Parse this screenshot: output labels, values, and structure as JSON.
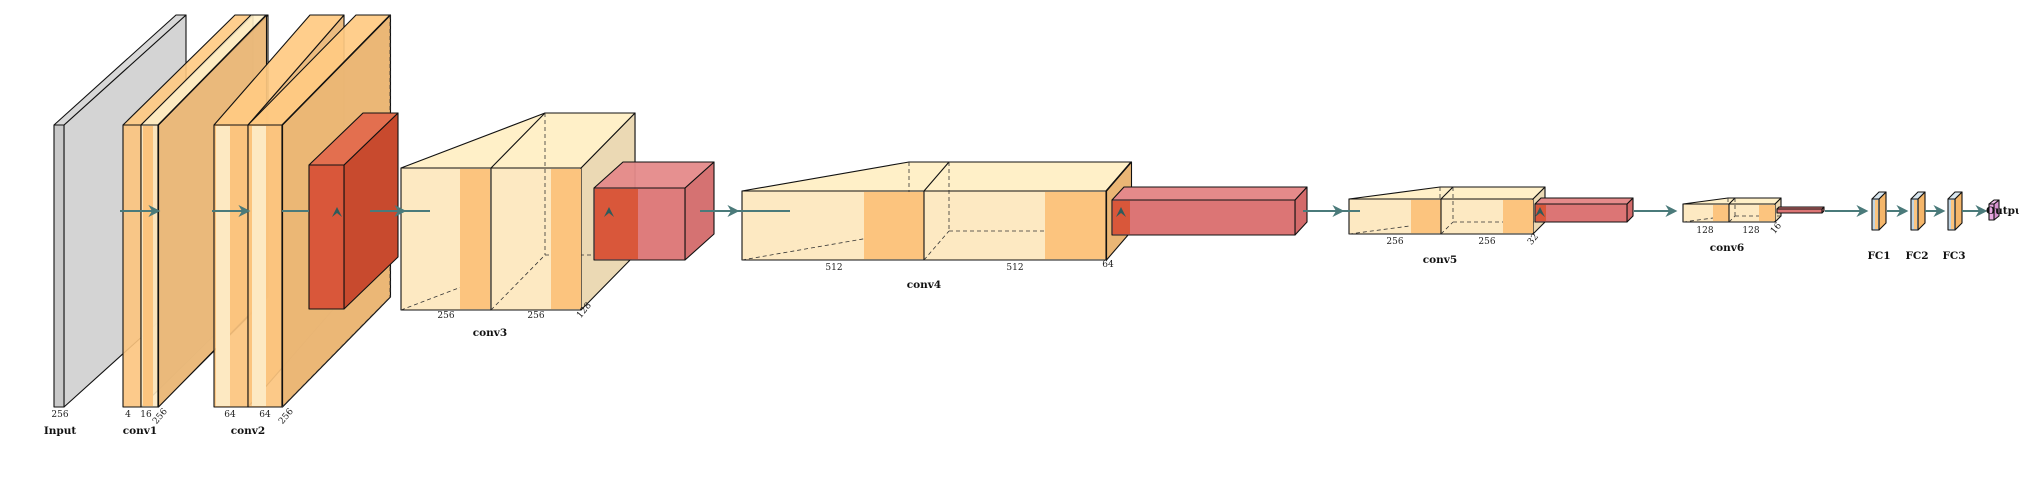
{
  "colors": {
    "input": "#c9c9c9",
    "conv_light": "#fde9c2",
    "conv_mid": "#fcc47e",
    "pool_dark": "#d9573a",
    "pool_light": "#dc7575",
    "fc_blue": "#bfd4e3",
    "output": "#e8a8e0",
    "arrow": "#4a7a7a"
  },
  "layers": {
    "input": {
      "name": "Input",
      "dim": "256"
    },
    "conv1": {
      "name": "conv1",
      "dims": [
        "4",
        "16",
        "256"
      ]
    },
    "conv2": {
      "name": "conv2",
      "dims": [
        "64",
        "64",
        "256"
      ]
    },
    "conv3": {
      "name": "conv3",
      "dims": [
        "256",
        "256",
        "128"
      ]
    },
    "conv4": {
      "name": "conv4",
      "dims": [
        "512",
        "512",
        "64"
      ]
    },
    "conv5": {
      "name": "conv5",
      "dims": [
        "256",
        "256",
        "32"
      ]
    },
    "conv6": {
      "name": "conv6",
      "dims": [
        "128",
        "128",
        "16"
      ]
    },
    "fc1": {
      "name": "FC1"
    },
    "fc2": {
      "name": "FC2"
    },
    "fc3": {
      "name": "FC3"
    },
    "output": {
      "name": "Output"
    }
  }
}
